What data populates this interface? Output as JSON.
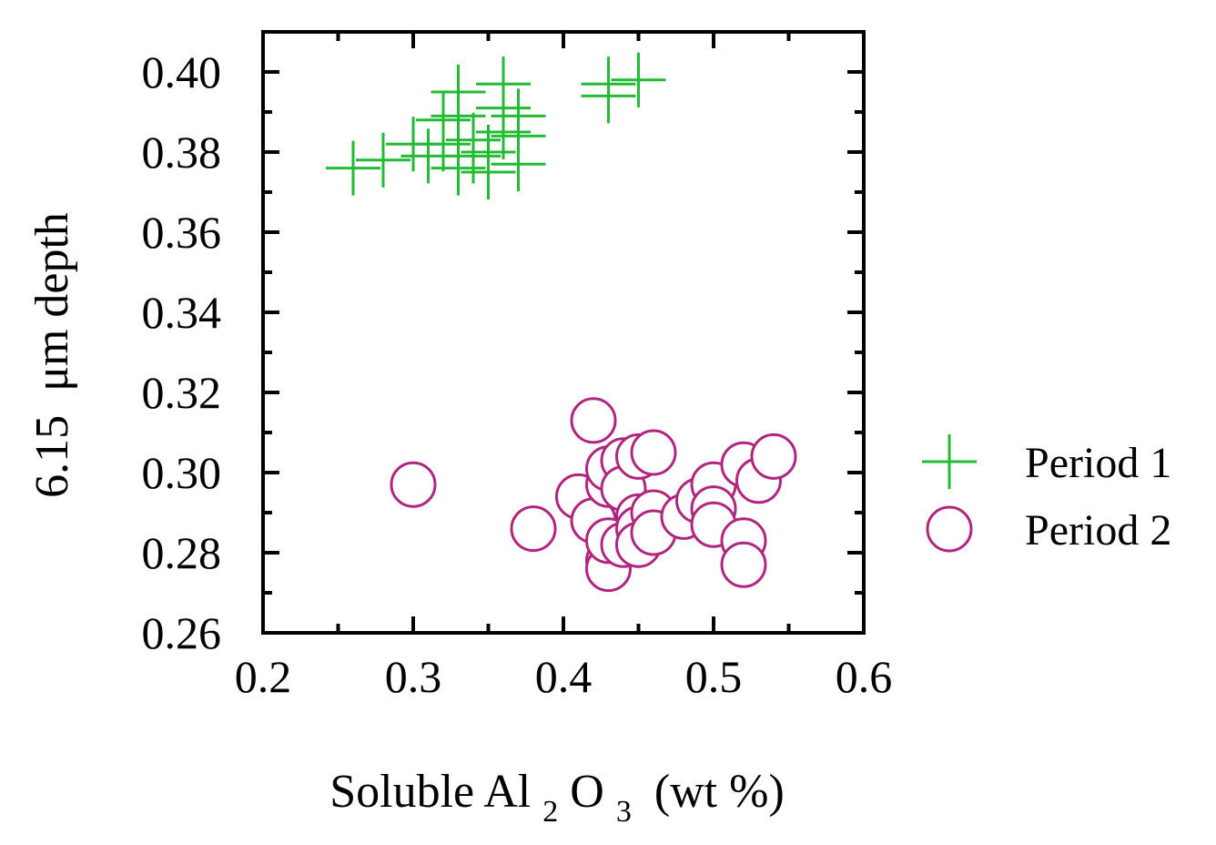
{
  "chart_data": {
    "type": "scatter",
    "title": "",
    "xlabel": "Soluble Al",
    "xlabel_sub1": "2",
    "xlabel_mid": "O",
    "xlabel_sub2": "3",
    "xlabel_tail": "(wt %)",
    "ylabel": "6.15  μm depth",
    "xlim": [
      0.2,
      0.6
    ],
    "ylim": [
      0.26,
      0.41
    ],
    "xticks": [
      "0.2",
      "0.3",
      "0.4",
      "0.5",
      "0.6"
    ],
    "yticks": [
      "0.26",
      "0.28",
      "0.30",
      "0.32",
      "0.34",
      "0.36",
      "0.38",
      "0.40"
    ],
    "grid": false,
    "legend_position": "right",
    "colors": {
      "period1": "#22bb33",
      "period2": "#b0267f"
    },
    "series": [
      {
        "name": "Period 1",
        "marker": "plus",
        "x": [
          0.26,
          0.28,
          0.3,
          0.31,
          0.32,
          0.32,
          0.33,
          0.33,
          0.33,
          0.34,
          0.34,
          0.35,
          0.35,
          0.36,
          0.36,
          0.36,
          0.37,
          0.37,
          0.37,
          0.43,
          0.43,
          0.45
        ],
        "y": [
          0.376,
          0.378,
          0.382,
          0.379,
          0.382,
          0.388,
          0.395,
          0.389,
          0.376,
          0.383,
          0.379,
          0.375,
          0.38,
          0.397,
          0.391,
          0.385,
          0.389,
          0.384,
          0.377,
          0.397,
          0.394,
          0.398
        ]
      },
      {
        "name": "Period 2",
        "marker": "circle",
        "x": [
          0.3,
          0.38,
          0.41,
          0.42,
          0.42,
          0.43,
          0.43,
          0.43,
          0.43,
          0.43,
          0.44,
          0.44,
          0.44,
          0.45,
          0.45,
          0.45,
          0.45,
          0.46,
          0.46,
          0.46,
          0.48,
          0.49,
          0.5,
          0.5,
          0.5,
          0.52,
          0.52,
          0.52,
          0.53,
          0.54
        ],
        "y": [
          0.297,
          0.286,
          0.294,
          0.313,
          0.288,
          0.297,
          0.301,
          0.278,
          0.276,
          0.283,
          0.303,
          0.296,
          0.282,
          0.304,
          0.289,
          0.286,
          0.282,
          0.305,
          0.29,
          0.285,
          0.289,
          0.293,
          0.297,
          0.291,
          0.287,
          0.302,
          0.283,
          0.277,
          0.298,
          0.304
        ]
      }
    ]
  }
}
